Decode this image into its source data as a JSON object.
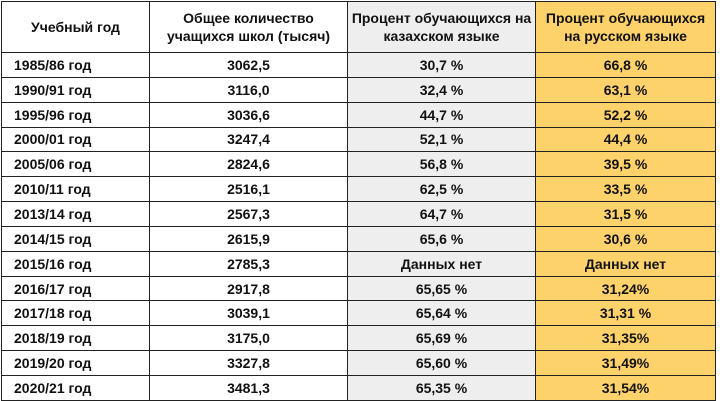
{
  "columns": {
    "school_year": "Учебный год",
    "total_students": "Общее количество учащихся школ (тысяч)",
    "kazakh_pct": "Процент обучающихся на казахском языке",
    "russian_pct": "Процент обучающихся на русском языке"
  },
  "colors": {
    "kazakh_column_bg": "#eeeeee",
    "russian_column_bg": "#fdd26b",
    "border": "#222222"
  },
  "rows": [
    {
      "year": "1985/86 год",
      "total": "3062,5",
      "kazakh": "30,7 %",
      "russian": "66,8 %"
    },
    {
      "year": "1990/91 год",
      "total": "3116,0",
      "kazakh": "32,4 %",
      "russian": "63,1 %"
    },
    {
      "year": "1995/96 год",
      "total": "3036,6",
      "kazakh": "44,7 %",
      "russian": "52,2 %"
    },
    {
      "year": "2000/01 год",
      "total": "3247,4",
      "kazakh": "52,1 %",
      "russian": "44,4 %"
    },
    {
      "year": "2005/06 год",
      "total": "2824,6",
      "kazakh": "56,8 %",
      "russian": "39,5 %"
    },
    {
      "year": "2010/11 год",
      "total": "2516,1",
      "kazakh": "62,5 %",
      "russian": "33,5 %"
    },
    {
      "year": "2013/14 год",
      "total": "2567,3",
      "kazakh": "64,7 %",
      "russian": "31,5 %"
    },
    {
      "year": "2014/15 год",
      "total": "2615,9",
      "kazakh": "65,6 %",
      "russian": "30,6 %"
    },
    {
      "year": "2015/16 год",
      "total": "2785,3",
      "kazakh": "Данных нет",
      "russian": "Данных нет"
    },
    {
      "year": "2016/17 год",
      "total": "2917,8",
      "kazakh": "65,65 %",
      "russian": "31,24%"
    },
    {
      "year": "2017/18 год",
      "total": "3039,1",
      "kazakh": "65,64 %",
      "russian": "31,31 %"
    },
    {
      "year": "2018/19 год",
      "total": "3175,0",
      "kazakh": "65,69 %",
      "russian": "31,35%"
    },
    {
      "year": "2019/20 год",
      "total": "3327,8",
      "kazakh": "65,60 %",
      "russian": "31,49%"
    },
    {
      "year": "2020/21 год",
      "total": "3481,3",
      "kazakh": "65,35 %",
      "russian": "31,54%"
    }
  ]
}
